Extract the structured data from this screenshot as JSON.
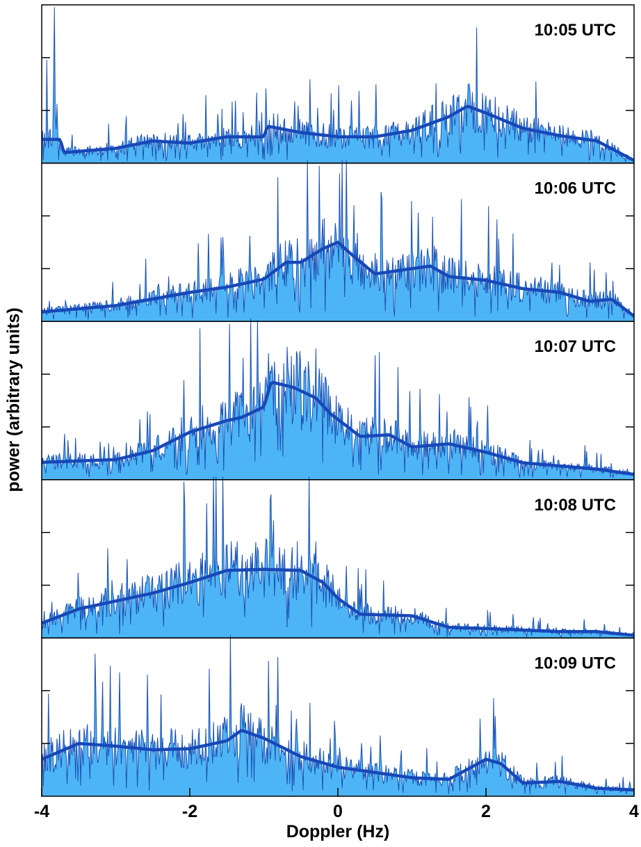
{
  "chart_data": {
    "type": "area",
    "xlabel": "Doppler (Hz)",
    "ylabel": "power (arbitrary units)",
    "xlim": [
      -4,
      4
    ],
    "xticks": [
      -4,
      -2,
      0,
      2,
      4
    ],
    "xtick_labels": [
      "-4",
      "-2",
      "0",
      "2",
      "4"
    ],
    "ylim": [
      0,
      3
    ],
    "grid": false,
    "fill_color": "#4db5f5",
    "outline_color": "#1a4fb5",
    "smooth_color": "#1748b8",
    "panels": [
      {
        "label": "10:05 UTC",
        "peaks": [
          [
            -3.93,
            2.0,
            0.01
          ],
          [
            -3.83,
            3.0,
            0.012
          ]
        ],
        "smooth": [
          [
            -4,
            0.45
          ],
          [
            -3.75,
            0.45
          ],
          [
            -3.7,
            0.2
          ],
          [
            -3.0,
            0.28
          ],
          [
            -2.5,
            0.42
          ],
          [
            -2.0,
            0.38
          ],
          [
            -1.5,
            0.5
          ],
          [
            -1.0,
            0.5
          ],
          [
            -0.95,
            0.7
          ],
          [
            -0.5,
            0.58
          ],
          [
            0.0,
            0.5
          ],
          [
            0.5,
            0.5
          ],
          [
            1.0,
            0.62
          ],
          [
            1.5,
            0.88
          ],
          [
            1.75,
            1.08
          ],
          [
            2.0,
            0.95
          ],
          [
            2.5,
            0.66
          ],
          [
            3.0,
            0.52
          ],
          [
            3.5,
            0.42
          ],
          [
            4.0,
            0.05
          ]
        ]
      },
      {
        "label": "10:06 UTC",
        "peaks": [],
        "smooth": [
          [
            -4,
            0.18
          ],
          [
            -3.0,
            0.3
          ],
          [
            -2.0,
            0.55
          ],
          [
            -1.5,
            0.65
          ],
          [
            -1.0,
            0.8
          ],
          [
            -0.7,
            1.12
          ],
          [
            -0.5,
            1.12
          ],
          [
            -0.2,
            1.38
          ],
          [
            0.0,
            1.5
          ],
          [
            0.2,
            1.25
          ],
          [
            0.5,
            0.9
          ],
          [
            1.0,
            1.0
          ],
          [
            1.25,
            1.05
          ],
          [
            1.5,
            0.85
          ],
          [
            2.0,
            0.78
          ],
          [
            2.5,
            0.62
          ],
          [
            3.0,
            0.55
          ],
          [
            3.4,
            0.38
          ],
          [
            3.7,
            0.42
          ],
          [
            4.0,
            0.1
          ]
        ]
      },
      {
        "label": "10:07 UTC",
        "peaks": [],
        "smooth": [
          [
            -4,
            0.33
          ],
          [
            -3.0,
            0.38
          ],
          [
            -2.5,
            0.55
          ],
          [
            -2.0,
            0.9
          ],
          [
            -1.5,
            1.12
          ],
          [
            -1.3,
            1.18
          ],
          [
            -1.0,
            1.38
          ],
          [
            -0.9,
            1.85
          ],
          [
            -0.6,
            1.75
          ],
          [
            -0.3,
            1.55
          ],
          [
            -0.1,
            1.25
          ],
          [
            0.3,
            0.82
          ],
          [
            0.7,
            0.85
          ],
          [
            1.0,
            0.62
          ],
          [
            1.5,
            0.68
          ],
          [
            2.0,
            0.52
          ],
          [
            2.5,
            0.32
          ],
          [
            3.0,
            0.26
          ],
          [
            3.5,
            0.2
          ],
          [
            4.0,
            0.1
          ]
        ]
      },
      {
        "label": "10:08 UTC",
        "peaks": [],
        "smooth": [
          [
            -4,
            0.28
          ],
          [
            -3.5,
            0.55
          ],
          [
            -3.0,
            0.7
          ],
          [
            -2.5,
            0.85
          ],
          [
            -2.0,
            1.05
          ],
          [
            -1.5,
            1.28
          ],
          [
            -1.0,
            1.3
          ],
          [
            -0.5,
            1.28
          ],
          [
            -0.2,
            1.05
          ],
          [
            0.0,
            0.75
          ],
          [
            0.3,
            0.45
          ],
          [
            1.0,
            0.42
          ],
          [
            1.5,
            0.2
          ],
          [
            2.0,
            0.18
          ],
          [
            2.5,
            0.15
          ],
          [
            3.0,
            0.12
          ],
          [
            3.5,
            0.12
          ],
          [
            4.0,
            0.05
          ]
        ]
      },
      {
        "label": "10:09 UTC",
        "peaks": [],
        "smooth": [
          [
            -4,
            0.7
          ],
          [
            -3.5,
            1.0
          ],
          [
            -3.0,
            0.95
          ],
          [
            -2.5,
            0.88
          ],
          [
            -2.0,
            0.9
          ],
          [
            -1.5,
            1.05
          ],
          [
            -1.3,
            1.25
          ],
          [
            -1.0,
            1.1
          ],
          [
            -0.5,
            0.75
          ],
          [
            0.0,
            0.55
          ],
          [
            0.5,
            0.45
          ],
          [
            1.0,
            0.35
          ],
          [
            1.5,
            0.32
          ],
          [
            2.0,
            0.7
          ],
          [
            2.2,
            0.62
          ],
          [
            2.5,
            0.25
          ],
          [
            3.0,
            0.28
          ],
          [
            3.5,
            0.15
          ],
          [
            4.0,
            0.12
          ]
        ]
      }
    ]
  }
}
